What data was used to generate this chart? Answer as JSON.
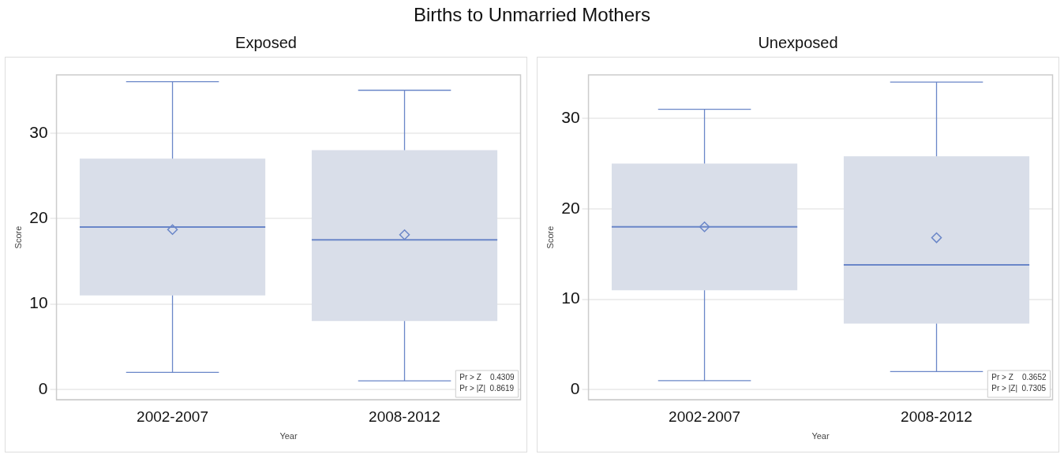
{
  "chart_data": [
    {
      "type": "box",
      "title": "Births to Unmarried Mothers",
      "subtitle": "Exposed",
      "xlabel": "Year",
      "ylabel": "Score",
      "categories": [
        "2002-2007",
        "2008-2012"
      ],
      "boxes": [
        {
          "low": 2,
          "q1": 11,
          "median": 19,
          "q3": 27,
          "high": 36,
          "mean": 18.7
        },
        {
          "low": 1,
          "q1": 8,
          "median": 17.5,
          "q3": 28,
          "high": 35,
          "mean": 18.1
        }
      ],
      "color": "#d9dee9",
      "ylim": [
        -1.2,
        36.8
      ],
      "yticks": [
        0,
        10,
        20,
        30
      ],
      "grid": "y",
      "marker": "diamond",
      "annotations": [
        "Pr > Z    0.4309",
        "Pr > |Z|  0.8619"
      ]
    },
    {
      "type": "box",
      "subtitle": "Unexposed",
      "xlabel": "Year",
      "ylabel": "Score",
      "categories": [
        "2002-2007",
        "2008-2012"
      ],
      "boxes": [
        {
          "low": 1,
          "q1": 11,
          "median": 18,
          "q3": 25,
          "high": 31,
          "mean": 18
        },
        {
          "low": 2,
          "q1": 7.3,
          "median": 13.8,
          "q3": 25.8,
          "high": 34,
          "mean": 16.8
        }
      ],
      "color": "#d9dee9",
      "ylim": [
        -1.1,
        34.8
      ],
      "yticks": [
        0,
        10,
        20,
        30
      ],
      "grid": "y",
      "marker": "diamond",
      "annotations": [
        "Pr > Z    0.3652",
        "Pr > |Z|  0.7305"
      ]
    }
  ]
}
